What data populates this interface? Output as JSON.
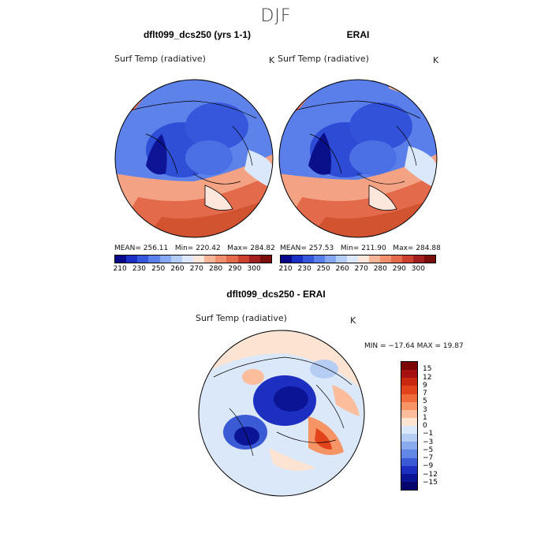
{
  "season": "DJF",
  "panels": [
    {
      "title": "dflt099_dcs250 (yrs 1-1)",
      "variable": "Surf Temp (radiative)",
      "units": "K",
      "stats": {
        "mean": "256.11",
        "min": "220.42",
        "max": "284.82"
      }
    },
    {
      "title": "ERAI",
      "variable": "Surf Temp (radiative)",
      "units": "K",
      "stats": {
        "mean": "257.53",
        "min": "211.90",
        "max": "284.88"
      }
    }
  ],
  "abs_colorbar": {
    "labels": [
      "210",
      "230",
      "250",
      "260",
      "270",
      "280",
      "290",
      "300"
    ],
    "colors": [
      "#08088a",
      "#1c2fc4",
      "#3656dc",
      "#5a7fea",
      "#86a8f2",
      "#b3cdf7",
      "#dbe8fb",
      "#fde6dc",
      "#f7b597",
      "#f0906e",
      "#e46a4c",
      "#cc4030",
      "#a31e1e",
      "#7a0c0c"
    ]
  },
  "diff_panel": {
    "title": "dflt099_dcs250 - ERAI",
    "variable": "Surf Temp (radiative)",
    "units": "K",
    "stats_text": "MIN = −17.64  MAX =   19.87"
  },
  "diff_colorbar": {
    "labels": [
      "15",
      "12",
      "9",
      "7",
      "5",
      "3",
      "1",
      "0",
      "−1",
      "−3",
      "−5",
      "−7",
      "−9",
      "−12",
      "−15"
    ],
    "colors": [
      "#7d0606",
      "#a51010",
      "#c92810",
      "#e2431b",
      "#f06a3a",
      "#f79466",
      "#fbbd9c",
      "#fde3d2",
      "#dbe8f9",
      "#b5ccf3",
      "#8aaaee",
      "#6387e6",
      "#3a5ad6",
      "#1d2fc0",
      "#0b1494",
      "#06066e"
    ]
  }
}
